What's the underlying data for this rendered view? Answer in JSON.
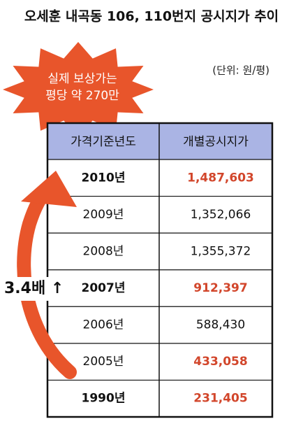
{
  "title": "오세훈 내곡동 106, 110번지 공시지가 추이",
  "callout": {
    "lines": [
      "실제 보상가는",
      "평당 약 270만"
    ]
  },
  "unit": "(단위: 원/평)",
  "annotation": "3.4배 ↑",
  "table": {
    "headers": [
      "가격기준년도",
      "개별공시지가"
    ],
    "rows": [
      [
        "2010년",
        "1,487,603"
      ],
      [
        "2009년",
        "1,352,066"
      ],
      [
        "2008년",
        "1,355,372"
      ],
      [
        "2007년",
        "912,397"
      ],
      [
        "2006년",
        "588,430"
      ],
      [
        "2005년",
        "433,058"
      ],
      [
        "1990년",
        "231,405"
      ]
    ]
  }
}
